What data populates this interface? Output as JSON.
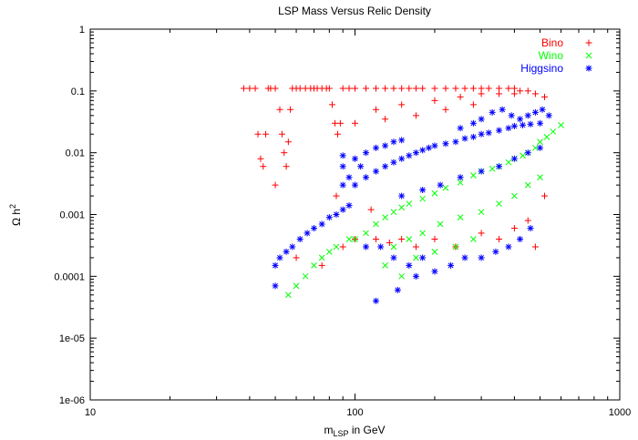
{
  "chart_data": {
    "type": "scatter",
    "title": "LSP Mass Versus Relic Density",
    "xlabel": {
      "main": "m",
      "sub": "LSP",
      "rest": " in GeV"
    },
    "ylabel": {
      "main": "Ω h",
      "sup": "2"
    },
    "x_scale": "log",
    "y_scale": "log",
    "xlim": [
      10,
      1000
    ],
    "ylim": [
      1e-06,
      1
    ],
    "x_ticks": [
      {
        "value": 10,
        "label": "10"
      },
      {
        "value": 100,
        "label": "100"
      },
      {
        "value": 1000,
        "label": "1000"
      }
    ],
    "y_ticks": [
      {
        "value": 1,
        "label": "1"
      },
      {
        "value": 0.1,
        "label": "0.1"
      },
      {
        "value": 0.01,
        "label": "0.01"
      },
      {
        "value": 0.001,
        "label": "0.001"
      },
      {
        "value": 0.0001,
        "label": "0.0001"
      },
      {
        "value": 1e-05,
        "label": "1e-05"
      },
      {
        "value": 1e-06,
        "label": "1e-06"
      }
    ],
    "grid": false,
    "legend_position": "top-right",
    "series": [
      {
        "name": "Bino",
        "color": "#ff0000",
        "marker": "plus",
        "points": [
          [
            38,
            0.11
          ],
          [
            40,
            0.11
          ],
          [
            42,
            0.11
          ],
          [
            43,
            0.02
          ],
          [
            44,
            0.008
          ],
          [
            45,
            0.006
          ],
          [
            46,
            0.02
          ],
          [
            47,
            0.11
          ],
          [
            48,
            0.11
          ],
          [
            50,
            0.11
          ],
          [
            52,
            0.05
          ],
          [
            53,
            0.02
          ],
          [
            54,
            0.01
          ],
          [
            55,
            0.006
          ],
          [
            56,
            0.015
          ],
          [
            57,
            0.05
          ],
          [
            58,
            0.11
          ],
          [
            60,
            0.11
          ],
          [
            62,
            0.11
          ],
          [
            65,
            0.11
          ],
          [
            68,
            0.11
          ],
          [
            70,
            0.11
          ],
          [
            72,
            0.11
          ],
          [
            75,
            0.11
          ],
          [
            78,
            0.11
          ],
          [
            80,
            0.11
          ],
          [
            82,
            0.06
          ],
          [
            84,
            0.03
          ],
          [
            86,
            0.02
          ],
          [
            88,
            0.03
          ],
          [
            90,
            0.11
          ],
          [
            95,
            0.11
          ],
          [
            100,
            0.11
          ],
          [
            110,
            0.11
          ],
          [
            120,
            0.11
          ],
          [
            130,
            0.11
          ],
          [
            140,
            0.11
          ],
          [
            150,
            0.11
          ],
          [
            160,
            0.11
          ],
          [
            170,
            0.11
          ],
          [
            180,
            0.11
          ],
          [
            200,
            0.11
          ],
          [
            220,
            0.11
          ],
          [
            240,
            0.11
          ],
          [
            260,
            0.11
          ],
          [
            280,
            0.11
          ],
          [
            300,
            0.11
          ],
          [
            320,
            0.11
          ],
          [
            350,
            0.11
          ],
          [
            380,
            0.11
          ],
          [
            400,
            0.11
          ],
          [
            420,
            0.1
          ],
          [
            450,
            0.1
          ],
          [
            480,
            0.09
          ],
          [
            520,
            0.08
          ],
          [
            120,
            0.05
          ],
          [
            150,
            0.06
          ],
          [
            200,
            0.07
          ],
          [
            250,
            0.08
          ],
          [
            300,
            0.09
          ],
          [
            350,
            0.09
          ],
          [
            400,
            0.09
          ],
          [
            100,
            0.03
          ],
          [
            130,
            0.035
          ],
          [
            170,
            0.04
          ],
          [
            220,
            0.05
          ],
          [
            280,
            0.06
          ],
          [
            50,
            0.003
          ],
          [
            85,
            0.002
          ],
          [
            100,
            0.0004
          ],
          [
            110,
            0.0003
          ],
          [
            120,
            0.0004
          ],
          [
            135,
            0.00035
          ],
          [
            150,
            0.0004
          ],
          [
            170,
            0.0003
          ],
          [
            200,
            0.0004
          ],
          [
            240,
            0.0003
          ],
          [
            300,
            0.0005
          ],
          [
            350,
            0.0004
          ],
          [
            400,
            0.0006
          ],
          [
            450,
            0.0008
          ],
          [
            480,
            0.0003
          ],
          [
            520,
            0.002
          ],
          [
            60,
            0.0002
          ],
          [
            75,
            0.00015
          ],
          [
            90,
            0.0003
          ],
          [
            115,
            0.0012
          ]
        ]
      },
      {
        "name": "Wino",
        "color": "#00ff00",
        "marker": "cross",
        "points": [
          [
            56,
            5e-05
          ],
          [
            60,
            7e-05
          ],
          [
            65,
            0.0001
          ],
          [
            70,
            0.00015
          ],
          [
            75,
            0.0002
          ],
          [
            80,
            0.00025
          ],
          [
            85,
            0.0003
          ],
          [
            95,
            0.0004
          ],
          [
            100,
            0.0004
          ],
          [
            110,
            0.0005
          ],
          [
            120,
            0.0007
          ],
          [
            130,
            0.0009
          ],
          [
            140,
            0.0011
          ],
          [
            150,
            0.0013
          ],
          [
            160,
            0.0015
          ],
          [
            180,
            0.0018
          ],
          [
            200,
            0.0022
          ],
          [
            220,
            0.0027
          ],
          [
            250,
            0.0033
          ],
          [
            280,
            0.0043
          ],
          [
            300,
            0.005
          ],
          [
            330,
            0.0055
          ],
          [
            350,
            0.006
          ],
          [
            380,
            0.007
          ],
          [
            400,
            0.008
          ],
          [
            430,
            0.009
          ],
          [
            450,
            0.01
          ],
          [
            480,
            0.012
          ],
          [
            500,
            0.015
          ],
          [
            530,
            0.018
          ],
          [
            560,
            0.022
          ],
          [
            600,
            0.028
          ],
          [
            140,
            0.0003
          ],
          [
            160,
            0.0004
          ],
          [
            180,
            0.0005
          ],
          [
            210,
            0.0007
          ],
          [
            250,
            0.0009
          ],
          [
            300,
            0.0011
          ],
          [
            350,
            0.0015
          ],
          [
            400,
            0.002
          ],
          [
            450,
            0.003
          ],
          [
            500,
            0.004
          ],
          [
            130,
            0.00015
          ],
          [
            150,
            0.0001
          ],
          [
            170,
            0.0002
          ],
          [
            200,
            0.00025
          ],
          [
            240,
            0.0003
          ],
          [
            280,
            0.0004
          ]
        ]
      },
      {
        "name": "Higgsino",
        "color": "#0000ff",
        "marker": "star",
        "points": [
          [
            50,
            7e-05
          ],
          [
            50,
            0.00015
          ],
          [
            52,
            0.0002
          ],
          [
            55,
            0.00025
          ],
          [
            58,
            0.0003
          ],
          [
            62,
            0.0004
          ],
          [
            66,
            0.0005
          ],
          [
            70,
            0.0006
          ],
          [
            75,
            0.0007
          ],
          [
            80,
            0.0009
          ],
          [
            85,
            0.001
          ],
          [
            90,
            0.0012
          ],
          [
            95,
            0.0014
          ],
          [
            90,
            0.003
          ],
          [
            90,
            0.006
          ],
          [
            90,
            0.009
          ],
          [
            95,
            0.004
          ],
          [
            100,
            0.003
          ],
          [
            100,
            0.008
          ],
          [
            105,
            0.006
          ],
          [
            110,
            0.004
          ],
          [
            110,
            0.01
          ],
          [
            120,
            0.005
          ],
          [
            120,
            0.012
          ],
          [
            130,
            0.006
          ],
          [
            130,
            0.013
          ],
          [
            140,
            0.007
          ],
          [
            140,
            0.015
          ],
          [
            150,
            0.008
          ],
          [
            150,
            0.016
          ],
          [
            160,
            0.009
          ],
          [
            170,
            0.01
          ],
          [
            180,
            0.011
          ],
          [
            190,
            0.012
          ],
          [
            200,
            0.013
          ],
          [
            220,
            0.014
          ],
          [
            240,
            0.015
          ],
          [
            260,
            0.017
          ],
          [
            280,
            0.018
          ],
          [
            300,
            0.02
          ],
          [
            320,
            0.021
          ],
          [
            350,
            0.023
          ],
          [
            380,
            0.025
          ],
          [
            400,
            0.027
          ],
          [
            430,
            0.028
          ],
          [
            460,
            0.029
          ],
          [
            500,
            0.03
          ],
          [
            150,
            0.002
          ],
          [
            180,
            0.0025
          ],
          [
            210,
            0.003
          ],
          [
            250,
            0.004
          ],
          [
            300,
            0.005
          ],
          [
            350,
            0.006
          ],
          [
            400,
            0.008
          ],
          [
            450,
            0.01
          ],
          [
            500,
            0.012
          ],
          [
            110,
            0.0003
          ],
          [
            125,
            0.0003
          ],
          [
            140,
            0.0002
          ],
          [
            160,
            0.00015
          ],
          [
            180,
            0.0002
          ],
          [
            200,
            0.00012
          ],
          [
            230,
            0.00015
          ],
          [
            260,
            0.0002
          ],
          [
            300,
            0.0002
          ],
          [
            340,
            0.00025
          ],
          [
            380,
            0.0003
          ],
          [
            420,
            0.0004
          ],
          [
            460,
            0.0006
          ],
          [
            120,
            4e-05
          ],
          [
            145,
            6e-05
          ],
          [
            170,
            0.0001
          ],
          [
            250,
            0.025
          ],
          [
            280,
            0.03
          ],
          [
            300,
            0.035
          ],
          [
            330,
            0.045
          ],
          [
            360,
            0.05
          ],
          [
            390,
            0.04
          ],
          [
            420,
            0.035
          ],
          [
            450,
            0.04
          ],
          [
            480,
            0.045
          ],
          [
            510,
            0.05
          ],
          [
            540,
            0.04
          ]
        ]
      }
    ]
  }
}
